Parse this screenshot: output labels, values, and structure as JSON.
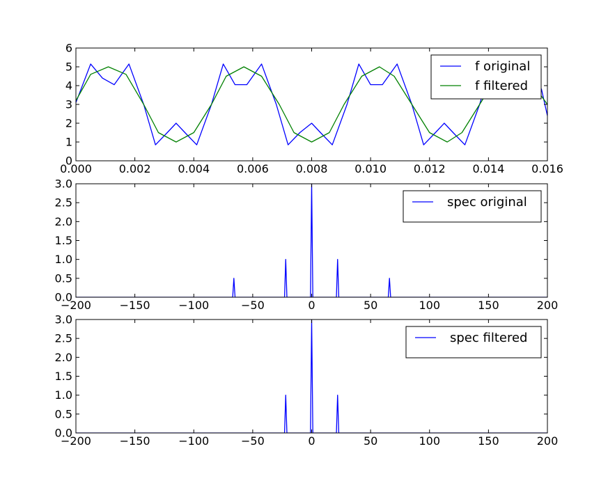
{
  "chart_data": [
    {
      "type": "line",
      "xlim": [
        0,
        0.016
      ],
      "ylim": [
        0,
        6
      ],
      "xticks": [
        0,
        0.002,
        0.004,
        0.006,
        0.008,
        0.01,
        0.012,
        0.014,
        0.016
      ],
      "xtick_labels": [
        "0.000",
        "0.002",
        "0.004",
        "0.006",
        "0.008",
        "0.010",
        "0.012",
        "0.014",
        "0.016"
      ],
      "yticks": [
        0,
        1,
        2,
        3,
        4,
        5,
        6
      ],
      "ytick_labels": [
        "0",
        "1",
        "2",
        "3",
        "4",
        "5",
        "6"
      ],
      "grid": false,
      "legend_position": "top-right",
      "series": [
        {
          "name": "f original",
          "color": "#0000ff",
          "x": [
            0.0,
            0.0005,
            0.0009,
            0.0013,
            0.0018,
            0.0023,
            0.0027,
            0.0031,
            0.0034,
            0.0037,
            0.0041,
            0.0046,
            0.005,
            0.0054,
            0.0058,
            0.0063,
            0.0068,
            0.0072,
            0.0076,
            0.008,
            0.0083,
            0.0087,
            0.0092,
            0.0096,
            0.01,
            0.0104,
            0.0109,
            0.0114,
            0.0118,
            0.0122,
            0.0125,
            0.0128,
            0.0132,
            0.0137,
            0.0141,
            0.0145,
            0.0149,
            0.0154,
            0.0158,
            0.016
          ],
          "y": [
            3.1,
            5.15,
            4.4,
            4.05,
            5.15,
            3.0,
            0.85,
            1.5,
            2.0,
            1.5,
            0.85,
            3.0,
            5.15,
            4.05,
            4.05,
            5.15,
            3.0,
            0.85,
            1.5,
            2.0,
            1.5,
            0.85,
            3.0,
            5.15,
            4.05,
            4.05,
            5.15,
            3.0,
            0.85,
            1.5,
            2.0,
            1.5,
            0.85,
            3.0,
            5.15,
            4.05,
            4.05,
            5.15,
            3.8,
            2.4
          ]
        },
        {
          "name": "f filtered",
          "color": "#008000",
          "x": [
            0.0,
            0.0005,
            0.0011,
            0.0017,
            0.0023,
            0.0028,
            0.0034,
            0.004,
            0.0046,
            0.0051,
            0.0057,
            0.0063,
            0.0069,
            0.0074,
            0.008,
            0.0086,
            0.0091,
            0.0097,
            0.0103,
            0.0108,
            0.0114,
            0.012,
            0.0126,
            0.0131,
            0.0137,
            0.0143,
            0.0149,
            0.0154,
            0.016
          ],
          "y": [
            3.2,
            4.6,
            5.0,
            4.6,
            3.0,
            1.5,
            1.0,
            1.5,
            3.0,
            4.5,
            5.0,
            4.5,
            3.0,
            1.5,
            1.0,
            1.5,
            3.0,
            4.5,
            5.0,
            4.5,
            3.0,
            1.5,
            1.0,
            1.5,
            3.0,
            4.5,
            5.0,
            4.3,
            3.0
          ]
        }
      ]
    },
    {
      "type": "line",
      "xlim": [
        -200,
        200
      ],
      "ylim": [
        0,
        3.0
      ],
      "xticks": [
        -200,
        -150,
        -100,
        -50,
        0,
        50,
        100,
        150,
        200
      ],
      "xtick_labels": [
        "−200",
        "−150",
        "−100",
        "−50",
        "0",
        "50",
        "100",
        "150",
        "200"
      ],
      "yticks": [
        0,
        0.5,
        1.0,
        1.5,
        2.0,
        2.5,
        3.0
      ],
      "ytick_labels": [
        "0.0",
        "0.5",
        "1.0",
        "1.5",
        "2.0",
        "2.5",
        "3.0"
      ],
      "grid": false,
      "legend_position": "top-right",
      "series": [
        {
          "name": "spec original",
          "color": "#0000ff",
          "x": [
            -200,
            -67,
            -66,
            -65,
            -23,
            -22,
            -21,
            -1,
            0,
            1,
            21,
            22,
            23,
            65,
            66,
            67,
            200
          ],
          "y": [
            0,
            0,
            0.5,
            0,
            0,
            1.0,
            0,
            0,
            3.0,
            0,
            0,
            1.0,
            0,
            0,
            0.5,
            0,
            0
          ]
        }
      ]
    },
    {
      "type": "line",
      "xlim": [
        -200,
        200
      ],
      "ylim": [
        0,
        3.0
      ],
      "xticks": [
        -200,
        -150,
        -100,
        -50,
        0,
        50,
        100,
        150,
        200
      ],
      "xtick_labels": [
        "−200",
        "−150",
        "−100",
        "−50",
        "0",
        "50",
        "100",
        "150",
        "200"
      ],
      "yticks": [
        0,
        0.5,
        1.0,
        1.5,
        2.0,
        2.5,
        3.0
      ],
      "ytick_labels": [
        "0.0",
        "0.5",
        "1.0",
        "1.5",
        "2.0",
        "2.5",
        "3.0"
      ],
      "grid": false,
      "legend_position": "top-right",
      "series": [
        {
          "name": "spec filtered",
          "color": "#0000ff",
          "x": [
            -200,
            -23,
            -22,
            -21,
            -1,
            0,
            1,
            21,
            22,
            23,
            200
          ],
          "y": [
            0,
            0,
            1.0,
            0,
            0,
            3.0,
            0,
            0,
            1.0,
            0,
            0
          ]
        }
      ]
    }
  ]
}
